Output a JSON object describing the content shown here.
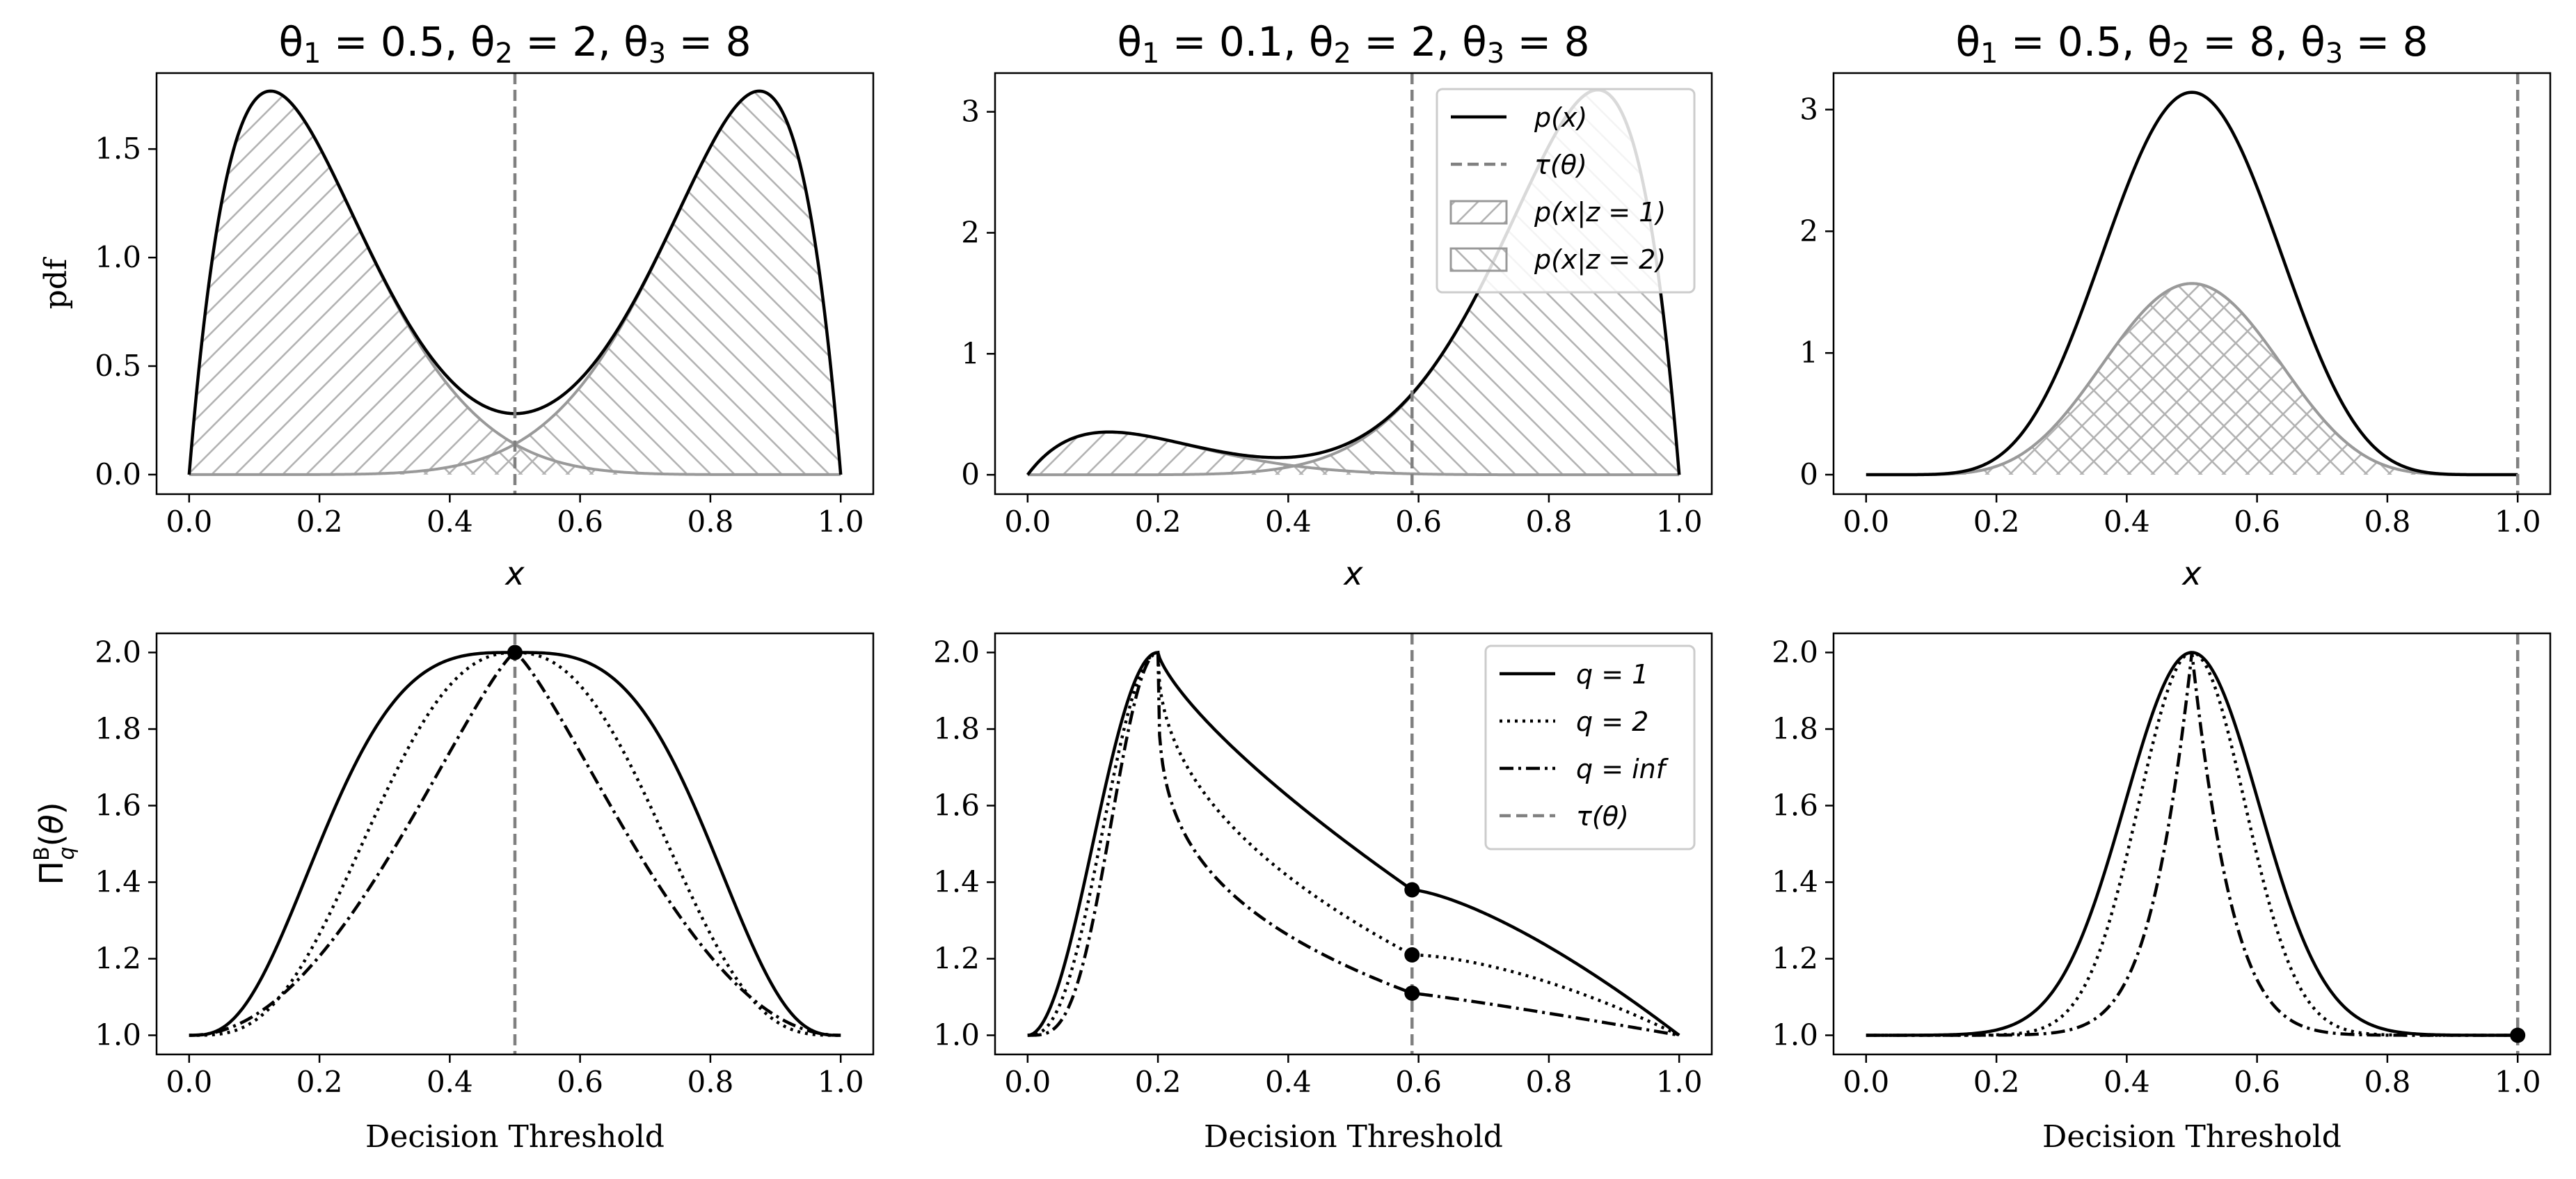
{
  "chart_data": [
    {
      "type": "area",
      "panel": "top-left",
      "title": "θ1 = 0.5, θ2 = 2, θ3 = 8",
      "title_parts": [
        "θ",
        "1",
        " = 0.5, θ",
        "2",
        " = 2, θ",
        "3",
        " = 8"
      ],
      "xlabel": "x",
      "ylabel": "pdf",
      "xlim": [
        -0.05,
        1.05
      ],
      "ylim": [
        -0.09,
        1.85
      ],
      "xticks": [
        "0.0",
        "0.2",
        "0.4",
        "0.6",
        "0.8",
        "1.0"
      ],
      "yticks": [
        "0.0",
        "0.5",
        "1.0",
        "1.5"
      ],
      "params": {
        "theta1": 0.5,
        "theta2": 2,
        "theta3": 8
      },
      "tau": 0.5,
      "series": [
        {
          "name": "p(x)",
          "peak_x": [
            0.125,
            0.875
          ],
          "peak_y": 1.77,
          "min_y": 0.29
        },
        {
          "name": "p(x|z=1)",
          "peak_y": 1.77,
          "hatch": "/"
        },
        {
          "name": "p(x|z=2)",
          "peak_y": 1.77,
          "hatch": "\\"
        }
      ]
    },
    {
      "type": "area",
      "panel": "top-middle",
      "title": "θ1 = 0.1, θ2 = 2, θ3 = 8",
      "title_parts": [
        "θ",
        "1",
        " = 0.1, θ",
        "2",
        " = 2, θ",
        "3",
        " = 8"
      ],
      "xlabel": "x",
      "ylabel": "",
      "xlim": [
        -0.05,
        1.05
      ],
      "ylim": [
        -0.16,
        3.32
      ],
      "xticks": [
        "0.0",
        "0.2",
        "0.4",
        "0.6",
        "0.8",
        "1.0"
      ],
      "yticks": [
        "0",
        "1",
        "2",
        "3"
      ],
      "params": {
        "theta1": 0.1,
        "theta2": 2,
        "theta3": 8
      },
      "tau": 0.59,
      "legend": {
        "location": "top-right",
        "entries": [
          "p(x)",
          "τ(θ)",
          "p(x|z = 1)",
          "p(x|z = 2)"
        ]
      },
      "series": [
        {
          "name": "p(x)",
          "peak_y": 3.18,
          "second_peak_y": 0.35
        },
        {
          "name": "p(x|z=1)",
          "hatch": "/"
        },
        {
          "name": "p(x|z=2)",
          "hatch": "\\"
        }
      ]
    },
    {
      "type": "area",
      "panel": "top-right",
      "title": "θ1 = 0.5, θ2 = 8, θ3 = 8",
      "title_parts": [
        "θ",
        "1",
        " = 0.5, θ",
        "2",
        " = 8, θ",
        "3",
        " = 8"
      ],
      "xlabel": "x",
      "ylabel": "",
      "xlim": [
        -0.05,
        1.05
      ],
      "ylim": [
        -0.16,
        3.3
      ],
      "xticks": [
        "0.0",
        "0.2",
        "0.4",
        "0.6",
        "0.8",
        "1.0"
      ],
      "yticks": [
        "0",
        "1",
        "2",
        "3"
      ],
      "params": {
        "theta1": 0.5,
        "theta2": 8,
        "theta3": 8
      },
      "tau": 1.0,
      "series": [
        {
          "name": "p(x)",
          "peak_x": 0.5,
          "peak_y": 3.14
        },
        {
          "name": "p(x|z=1)",
          "peak_y": 1.57,
          "hatch": "/"
        },
        {
          "name": "p(x|z=2)",
          "peak_y": 1.57,
          "hatch": "\\"
        }
      ]
    },
    {
      "type": "line",
      "panel": "bottom-left",
      "xlabel": "Decision Threshold",
      "ylabel": "Π^B_q(θ)",
      "xlim": [
        -0.05,
        1.05
      ],
      "ylim": [
        0.95,
        2.05
      ],
      "xticks": [
        "0.0",
        "0.2",
        "0.4",
        "0.6",
        "0.8",
        "1.0"
      ],
      "yticks": [
        "1.0",
        "1.2",
        "1.4",
        "1.6",
        "1.8",
        "2.0"
      ],
      "tau": 0.5,
      "markers": [
        {
          "x": 0.5,
          "y": 2.0
        }
      ],
      "series": [
        {
          "name": "q = 1",
          "style": "solid",
          "peak_x": 0.5,
          "peak_y": 2.0
        },
        {
          "name": "q = 2",
          "style": "dotted",
          "peak_x": 0.5,
          "peak_y": 2.0
        },
        {
          "name": "q = inf",
          "style": "dashdot",
          "peak_x": 0.5,
          "peak_y": 2.0
        }
      ]
    },
    {
      "type": "line",
      "panel": "bottom-middle",
      "xlabel": "Decision Threshold",
      "ylabel": "",
      "xlim": [
        -0.05,
        1.05
      ],
      "ylim": [
        0.95,
        2.05
      ],
      "xticks": [
        "0.0",
        "0.2",
        "0.4",
        "0.6",
        "0.8",
        "1.0"
      ],
      "yticks": [
        "1.0",
        "1.2",
        "1.4",
        "1.6",
        "1.8",
        "2.0"
      ],
      "tau": 0.59,
      "legend": {
        "location": "top-right",
        "entries": [
          "q = 1",
          "q = 2",
          "q = inf",
          "τ(θ)"
        ]
      },
      "markers": [
        {
          "x": 0.59,
          "y": 1.38
        },
        {
          "x": 0.59,
          "y": 1.21
        },
        {
          "x": 0.59,
          "y": 1.11
        }
      ],
      "series": [
        {
          "name": "q = 1",
          "style": "solid",
          "peak_x": 0.2,
          "peak_y": 2.0,
          "value_at_tau": 1.38
        },
        {
          "name": "q = 2",
          "style": "dotted",
          "peak_x": 0.2,
          "peak_y": 2.0,
          "value_at_tau": 1.21
        },
        {
          "name": "q = inf",
          "style": "dashdot",
          "peak_x": 0.2,
          "peak_y": 2.0,
          "value_at_tau": 1.11
        }
      ]
    },
    {
      "type": "line",
      "panel": "bottom-right",
      "xlabel": "Decision Threshold",
      "ylabel": "",
      "xlim": [
        -0.05,
        1.05
      ],
      "ylim": [
        0.95,
        2.05
      ],
      "xticks": [
        "0.0",
        "0.2",
        "0.4",
        "0.6",
        "0.8",
        "1.0"
      ],
      "yticks": [
        "1.0",
        "1.2",
        "1.4",
        "1.6",
        "1.8",
        "2.0"
      ],
      "tau": 1.0,
      "markers": [
        {
          "x": 1.0,
          "y": 1.0
        }
      ],
      "series": [
        {
          "name": "q = 1",
          "style": "solid",
          "peak_x": 0.5,
          "peak_y": 2.0
        },
        {
          "name": "q = 2",
          "style": "dotted",
          "peak_x": 0.5,
          "peak_y": 2.0
        },
        {
          "name": "q = inf",
          "style": "dashdot",
          "peak_x": 0.5,
          "peak_y": 2.0
        }
      ]
    }
  ],
  "colors": {
    "line": "#000000",
    "component": "#999999",
    "tau": "#808080",
    "hatch": "#b3b3b3"
  }
}
